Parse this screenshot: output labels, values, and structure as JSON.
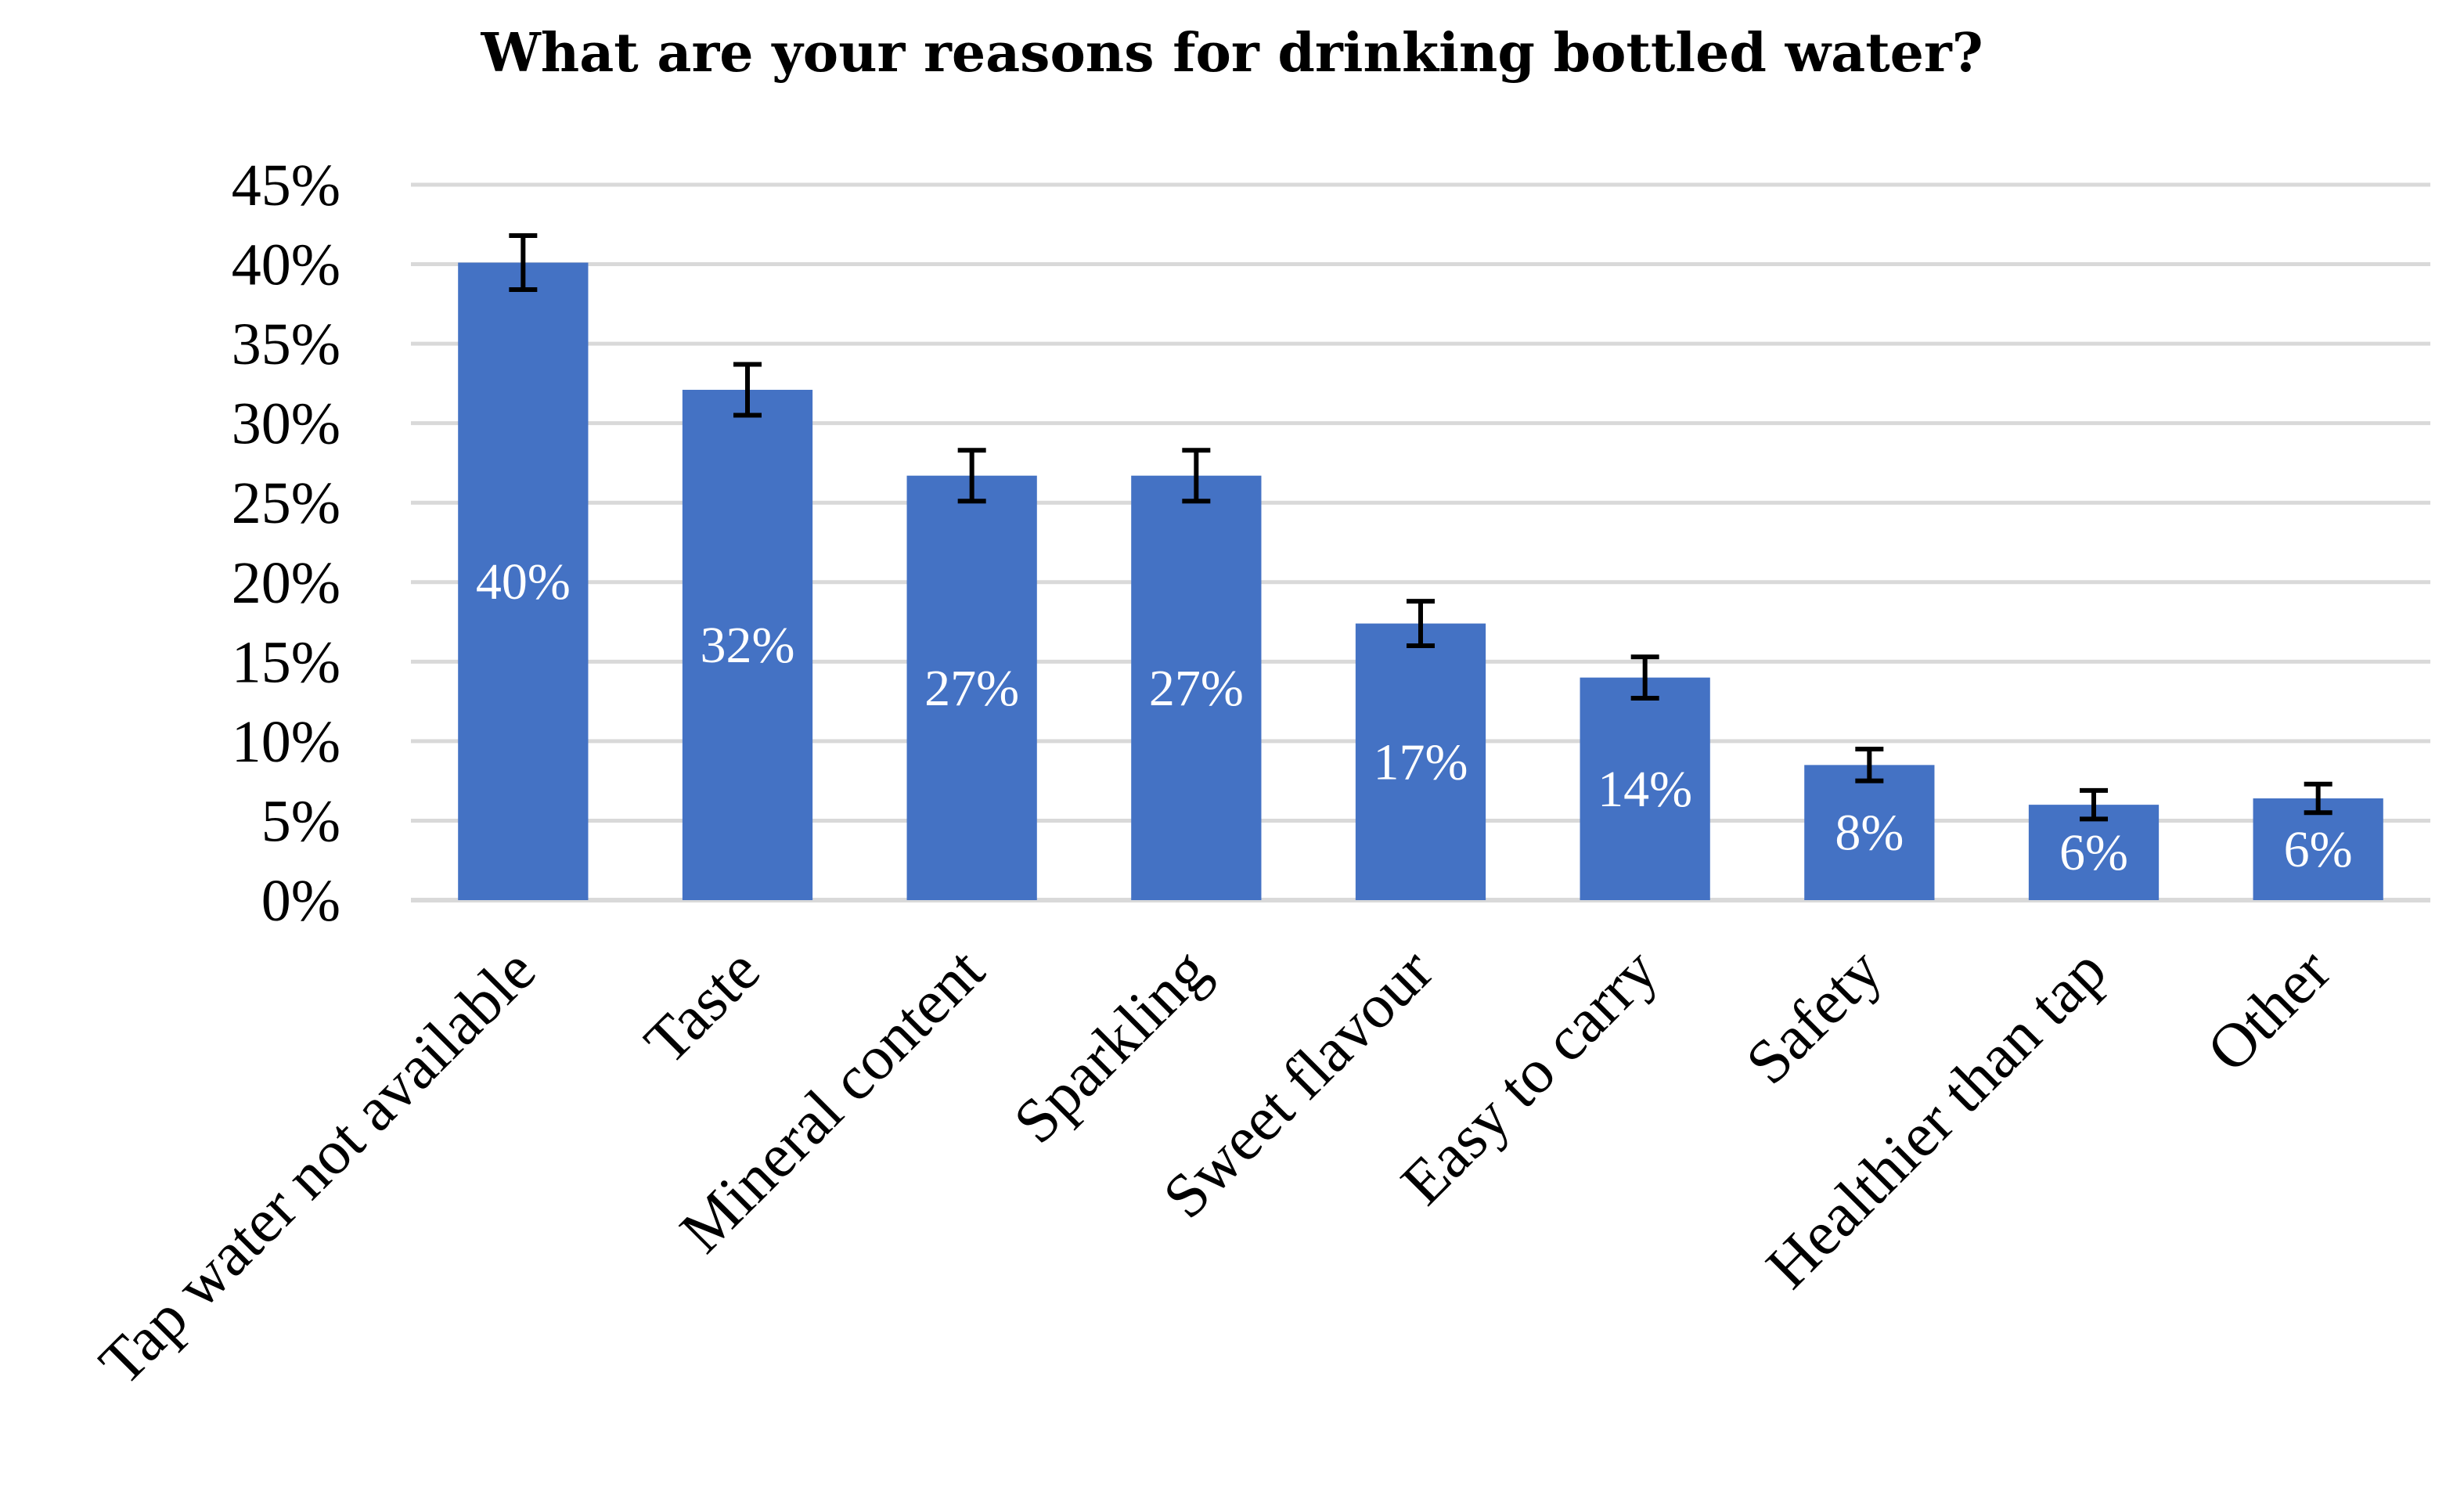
{
  "chart_data": {
    "type": "bar",
    "title": "What are your reasons for drinking bottled water?",
    "categories": [
      "Tap water not available",
      "Taste",
      "Mineral content",
      "Sparkling",
      "Sweet flavour",
      "Easy to carry",
      "Safety",
      "Healthier than tap",
      "Other"
    ],
    "values": [
      40.1,
      32.1,
      26.7,
      26.7,
      17.4,
      14.0,
      8.5,
      6.0,
      6.4
    ],
    "data_labels": [
      "40%",
      "32%",
      "27%",
      "27%",
      "17%",
      "14%",
      "8%",
      "6%",
      "6%"
    ],
    "error_bars": [
      1.7,
      1.6,
      1.6,
      1.6,
      1.4,
      1.3,
      1.0,
      0.9,
      0.9
    ],
    "ylim": [
      0,
      45
    ],
    "yticks": [
      0,
      5,
      10,
      15,
      20,
      25,
      30,
      35,
      40,
      45
    ],
    "ytick_labels": [
      "0%",
      "5%",
      "10%",
      "15%",
      "20%",
      "25%",
      "30%",
      "35%",
      "40%",
      "45%"
    ],
    "xlabel": "",
    "ylabel": "",
    "grid": true,
    "bar_color": "#4472C4",
    "grid_color": "#D9D9D9",
    "error_bar_color": "#000000"
  }
}
